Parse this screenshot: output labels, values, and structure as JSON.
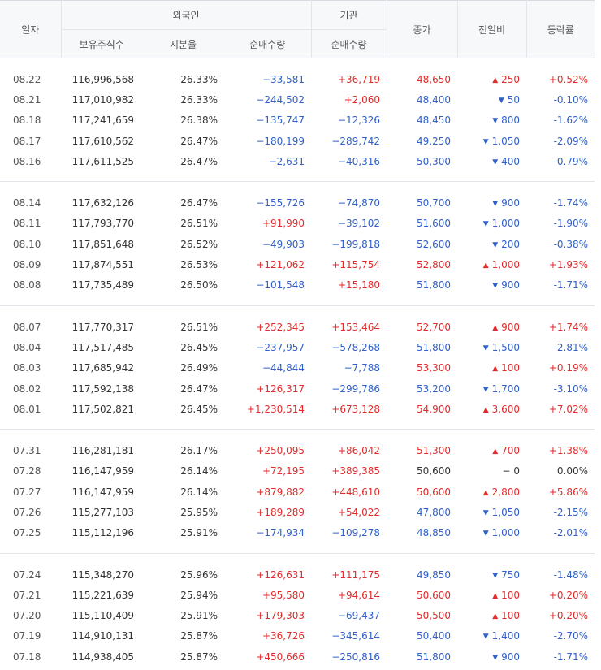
{
  "headers": {
    "date": "일자",
    "foreign": "외국인",
    "institution": "기관",
    "close": "종가",
    "diff": "전일비",
    "rate": "등락률",
    "holdings": "보유주식수",
    "share": "지분율",
    "foreign_net": "순매수량",
    "inst_net": "순매수량"
  },
  "colors": {
    "up": "#e12b2b",
    "down": "#3060c8"
  },
  "icons": {
    "up": "triangle-up-icon",
    "down": "triangle-down-icon",
    "flat": "dash-icon"
  },
  "groups": [
    [
      {
        "date": "08.22",
        "holdings": "116,996,568",
        "share": "26.33%",
        "foreign": "−33,581",
        "inst": "+36,719",
        "close": "48,650",
        "diff": "250",
        "dir": "up",
        "rate": "+0.52%"
      },
      {
        "date": "08.21",
        "holdings": "117,010,982",
        "share": "26.33%",
        "foreign": "−244,502",
        "inst": "+2,060",
        "close": "48,400",
        "diff": "50",
        "dir": "down",
        "rate": "-0.10%"
      },
      {
        "date": "08.18",
        "holdings": "117,241,659",
        "share": "26.38%",
        "foreign": "−135,747",
        "inst": "−12,326",
        "close": "48,450",
        "diff": "800",
        "dir": "down",
        "rate": "-1.62%"
      },
      {
        "date": "08.17",
        "holdings": "117,610,562",
        "share": "26.47%",
        "foreign": "−180,199",
        "inst": "−289,742",
        "close": "49,250",
        "diff": "1,050",
        "dir": "down",
        "rate": "-2.09%"
      },
      {
        "date": "08.16",
        "holdings": "117,611,525",
        "share": "26.47%",
        "foreign": "−2,631",
        "inst": "−40,316",
        "close": "50,300",
        "diff": "400",
        "dir": "down",
        "rate": "-0.79%"
      }
    ],
    [
      {
        "date": "08.14",
        "holdings": "117,632,126",
        "share": "26.47%",
        "foreign": "−155,726",
        "inst": "−74,870",
        "close": "50,700",
        "diff": "900",
        "dir": "down",
        "rate": "-1.74%"
      },
      {
        "date": "08.11",
        "holdings": "117,793,770",
        "share": "26.51%",
        "foreign": "+91,990",
        "inst": "−39,102",
        "close": "51,600",
        "diff": "1,000",
        "dir": "down",
        "rate": "-1.90%"
      },
      {
        "date": "08.10",
        "holdings": "117,851,648",
        "share": "26.52%",
        "foreign": "−49,903",
        "inst": "−199,818",
        "close": "52,600",
        "diff": "200",
        "dir": "down",
        "rate": "-0.38%"
      },
      {
        "date": "08.09",
        "holdings": "117,874,551",
        "share": "26.53%",
        "foreign": "+121,062",
        "inst": "+115,754",
        "close": "52,800",
        "diff": "1,000",
        "dir": "up",
        "rate": "+1.93%"
      },
      {
        "date": "08.08",
        "holdings": "117,735,489",
        "share": "26.50%",
        "foreign": "−101,548",
        "inst": "+15,180",
        "close": "51,800",
        "diff": "900",
        "dir": "down",
        "rate": "-1.71%"
      }
    ],
    [
      {
        "date": "08.07",
        "holdings": "117,770,317",
        "share": "26.51%",
        "foreign": "+252,345",
        "inst": "+153,464",
        "close": "52,700",
        "diff": "900",
        "dir": "up",
        "rate": "+1.74%"
      },
      {
        "date": "08.04",
        "holdings": "117,517,485",
        "share": "26.45%",
        "foreign": "−237,957",
        "inst": "−578,268",
        "close": "51,800",
        "diff": "1,500",
        "dir": "down",
        "rate": "-2.81%"
      },
      {
        "date": "08.03",
        "holdings": "117,685,942",
        "share": "26.49%",
        "foreign": "−44,844",
        "inst": "−7,788",
        "close": "53,300",
        "diff": "100",
        "dir": "up",
        "rate": "+0.19%"
      },
      {
        "date": "08.02",
        "holdings": "117,592,138",
        "share": "26.47%",
        "foreign": "+126,317",
        "inst": "−299,786",
        "close": "53,200",
        "diff": "1,700",
        "dir": "down",
        "rate": "-3.10%"
      },
      {
        "date": "08.01",
        "holdings": "117,502,821",
        "share": "26.45%",
        "foreign": "+1,230,514",
        "inst": "+673,128",
        "close": "54,900",
        "diff": "3,600",
        "dir": "up",
        "rate": "+7.02%"
      }
    ],
    [
      {
        "date": "07.31",
        "holdings": "116,281,181",
        "share": "26.17%",
        "foreign": "+250,095",
        "inst": "+86,042",
        "close": "51,300",
        "diff": "700",
        "dir": "up",
        "rate": "+1.38%"
      },
      {
        "date": "07.28",
        "holdings": "116,147,959",
        "share": "26.14%",
        "foreign": "+72,195",
        "inst": "+389,385",
        "close": "50,600",
        "diff": "0",
        "dir": "flat",
        "rate": "0.00%"
      },
      {
        "date": "07.27",
        "holdings": "116,147,959",
        "share": "26.14%",
        "foreign": "+879,882",
        "inst": "+448,610",
        "close": "50,600",
        "diff": "2,800",
        "dir": "up",
        "rate": "+5.86%"
      },
      {
        "date": "07.26",
        "holdings": "115,277,103",
        "share": "25.95%",
        "foreign": "+189,289",
        "inst": "+54,022",
        "close": "47,800",
        "diff": "1,050",
        "dir": "down",
        "rate": "-2.15%"
      },
      {
        "date": "07.25",
        "holdings": "115,112,196",
        "share": "25.91%",
        "foreign": "−174,934",
        "inst": "−109,278",
        "close": "48,850",
        "diff": "1,000",
        "dir": "down",
        "rate": "-2.01%"
      }
    ],
    [
      {
        "date": "07.24",
        "holdings": "115,348,270",
        "share": "25.96%",
        "foreign": "+126,631",
        "inst": "+111,175",
        "close": "49,850",
        "diff": "750",
        "dir": "down",
        "rate": "-1.48%"
      },
      {
        "date": "07.21",
        "holdings": "115,221,639",
        "share": "25.94%",
        "foreign": "+95,580",
        "inst": "+94,614",
        "close": "50,600",
        "diff": "100",
        "dir": "up",
        "rate": "+0.20%"
      },
      {
        "date": "07.20",
        "holdings": "115,110,409",
        "share": "25.91%",
        "foreign": "+179,303",
        "inst": "−69,437",
        "close": "50,500",
        "diff": "100",
        "dir": "up",
        "rate": "+0.20%"
      },
      {
        "date": "07.19",
        "holdings": "114,910,131",
        "share": "25.87%",
        "foreign": "+36,726",
        "inst": "−345,614",
        "close": "50,400",
        "diff": "1,400",
        "dir": "down",
        "rate": "-2.70%"
      },
      {
        "date": "07.18",
        "holdings": "114,938,405",
        "share": "25.87%",
        "foreign": "+450,666",
        "inst": "−250,816",
        "close": "51,800",
        "diff": "900",
        "dir": "down",
        "rate": "-1.71%"
      }
    ]
  ]
}
